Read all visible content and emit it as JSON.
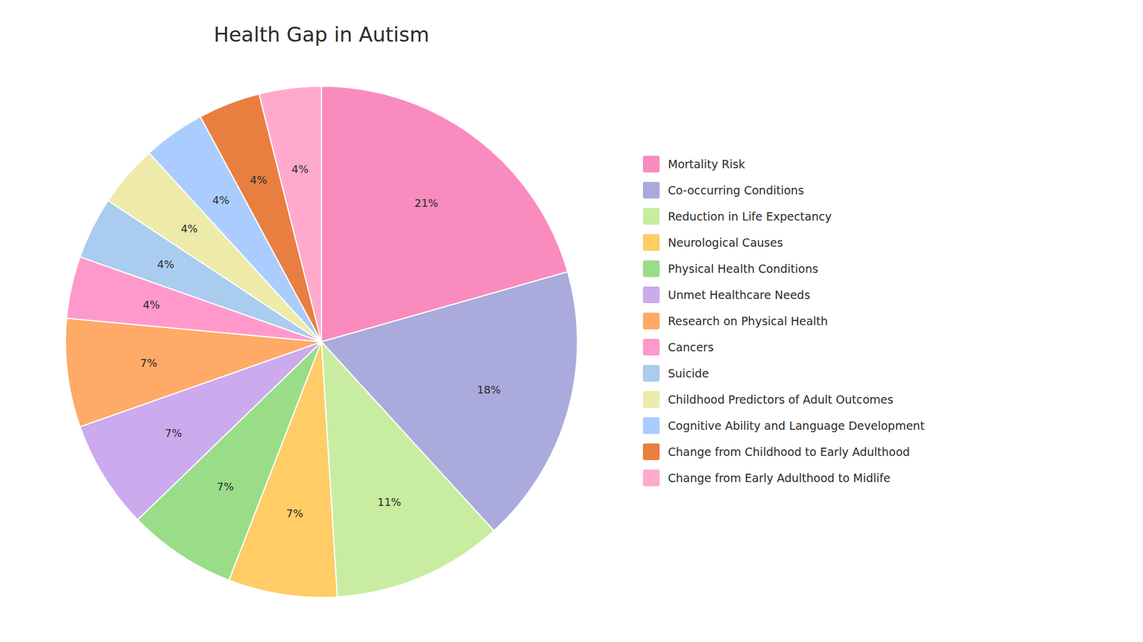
{
  "chart_data": {
    "type": "pie",
    "title": "Health Gap in Autism",
    "categories": [
      "Mortality Risk",
      "Co-occurring Conditions",
      "Reduction in Life Expectancy",
      "Neurological Causes",
      "Physical Health Conditions",
      "Unmet Healthcare Needs",
      "Research on Physical Health",
      "Cancers",
      "Suicide",
      "Childhood Predictors of Adult Outcomes",
      "Cognitive Ability and Language Development",
      "Change from Childhood to Early Adulthood",
      "Change from Early Adulthood to Midlife"
    ],
    "values": [
      21,
      18,
      11,
      7,
      7,
      7,
      7,
      4,
      4,
      4,
      4,
      4,
      4
    ],
    "value_labels": [
      "21%",
      "18%",
      "11%",
      "7%",
      "7%",
      "7%",
      "7%",
      "4%",
      "4%",
      "4%",
      "4%",
      "4%",
      "4%"
    ],
    "colors": [
      "#F98BBF",
      "#AAAADD",
      "#C8EDA0",
      "#FFCC66",
      "#99DD88",
      "#CCAAEE",
      "#FFAA66",
      "#FF99CC",
      "#AACCEE",
      "#EEEAAA",
      "#AACCFF",
      "#E87F40",
      "#FFAACC"
    ],
    "data_labels": true,
    "legend": "right"
  }
}
